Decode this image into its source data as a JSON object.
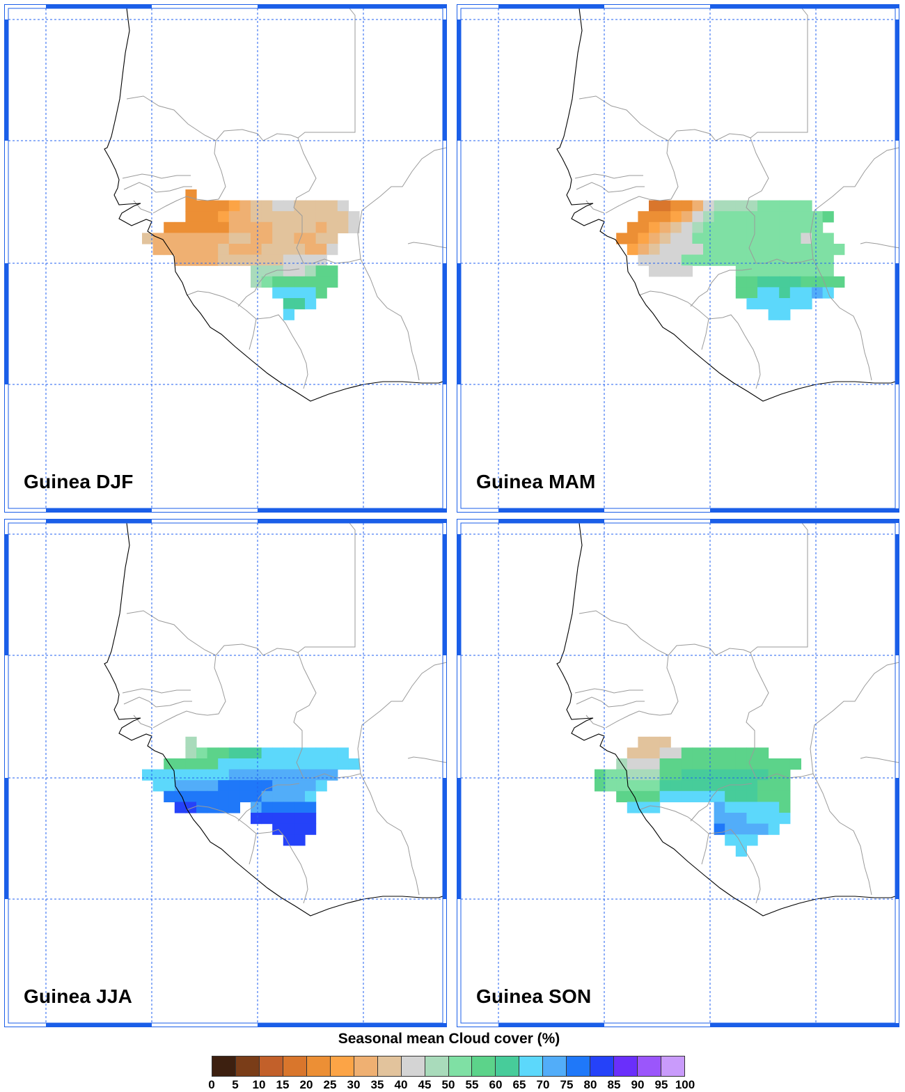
{
  "panels": [
    {
      "id": "djf",
      "title": "Guinea DJF"
    },
    {
      "id": "mam",
      "title": "Guinea MAM"
    },
    {
      "id": "jja",
      "title": "Guinea JJA"
    },
    {
      "id": "son",
      "title": "Guinea SON"
    }
  ],
  "legend": {
    "title": "Seasonal mean Cloud cover (%)",
    "ticks": [
      "0",
      "5",
      "10",
      "15",
      "20",
      "25",
      "30",
      "35",
      "40",
      "45",
      "50",
      "55",
      "60",
      "65",
      "70",
      "75",
      "80",
      "85",
      "90",
      "95",
      "100"
    ],
    "colors": [
      "#3d2010",
      "#7a3d18",
      "#c2602a",
      "#d9762c",
      "#ec8f35",
      "#fca446",
      "#efb072",
      "#e2c39c",
      "#d4d4d4",
      "#a9dbbb",
      "#7fe0a4",
      "#5cd38a",
      "#47cc9a",
      "#5cd8fb",
      "#52adf9",
      "#1f78f9",
      "#2542f9",
      "#6a2ffb",
      "#9b56fb",
      "#c99bfb"
    ]
  },
  "map": {
    "coastline_color": "#000000",
    "border_color": "#9a9a9a",
    "gridline_color": "#1f5ff0",
    "frame_color": "#1a5ee8"
  }
}
